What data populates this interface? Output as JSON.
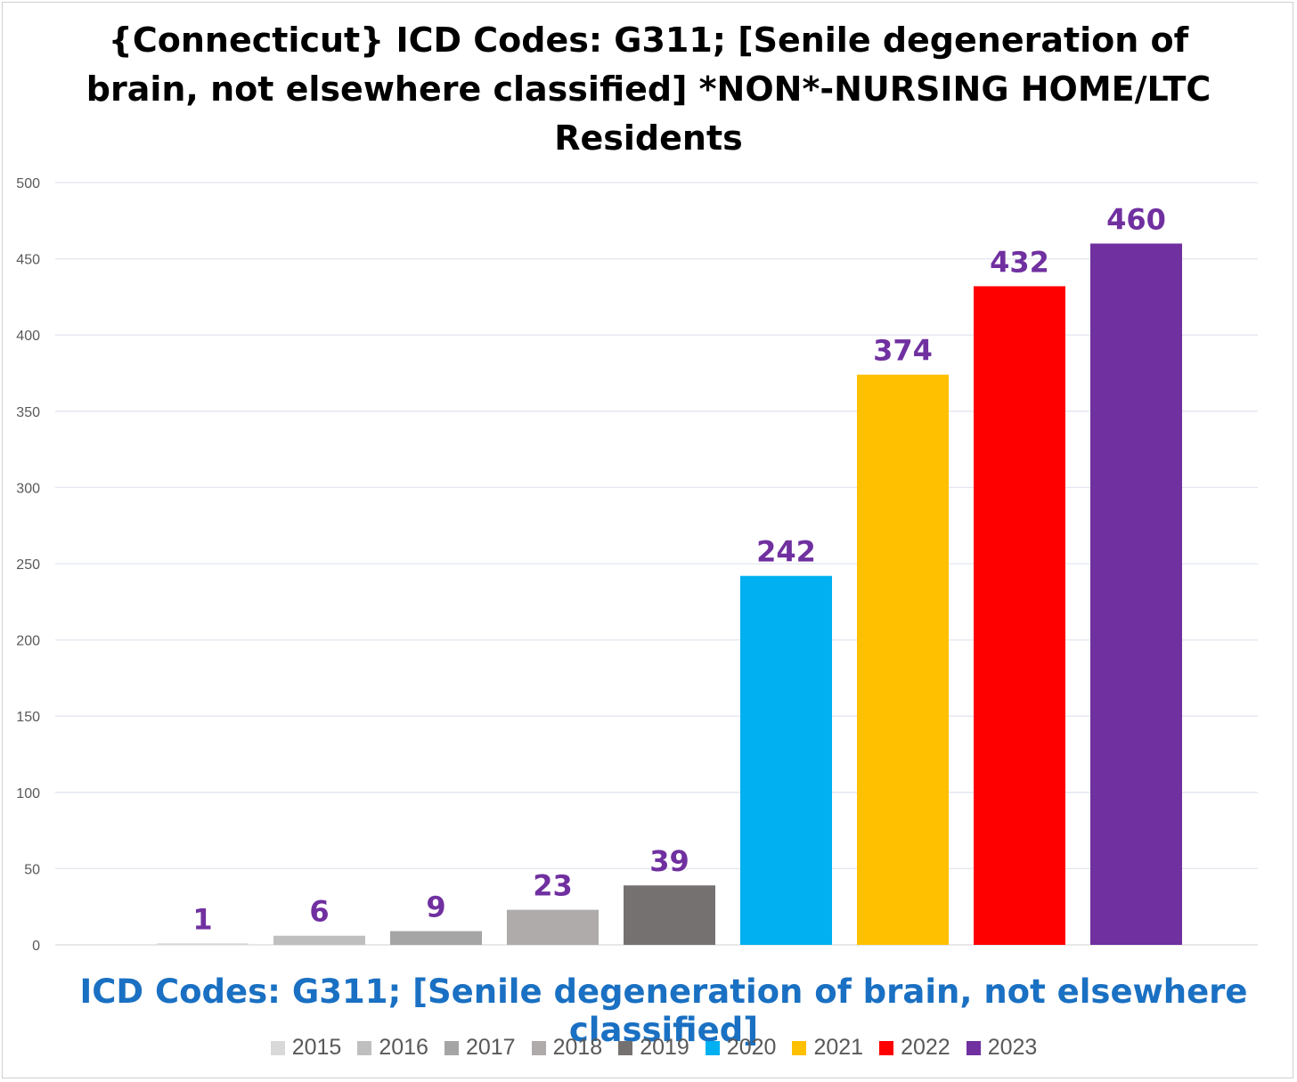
{
  "chart_data": {
    "type": "bar",
    "title_lines": [
      "{Connecticut}  ICD Codes: G311;  [Senile degeneration of",
      "brain, not elsewhere classified] *NON*-NURSING HOME/LTC",
      "Residents"
    ],
    "xlabel": "ICD Codes: G311;  [Senile degeneration of brain, not elsewhere classified]",
    "ylabel": "",
    "ylim": [
      0,
      500
    ],
    "yticks": [
      0,
      50,
      100,
      150,
      200,
      250,
      300,
      350,
      400,
      450,
      500
    ],
    "grid": true,
    "legend_position": "bottom",
    "series": [
      {
        "name": "2015",
        "value": 1,
        "color": "#d9d9d9"
      },
      {
        "name": "2016",
        "value": 6,
        "color": "#bfbfbf"
      },
      {
        "name": "2017",
        "value": 9,
        "color": "#a5a5a5"
      },
      {
        "name": "2018",
        "value": 23,
        "color": "#afabab"
      },
      {
        "name": "2019",
        "value": 39,
        "color": "#767171"
      },
      {
        "name": "2020",
        "value": 242,
        "color": "#00b0f0"
      },
      {
        "name": "2021",
        "value": 374,
        "color": "#ffc000"
      },
      {
        "name": "2022",
        "value": 432,
        "color": "#ff0000"
      },
      {
        "name": "2023",
        "value": 460,
        "color": "#7030a0"
      }
    ],
    "data_label_color": "#7030a0"
  }
}
